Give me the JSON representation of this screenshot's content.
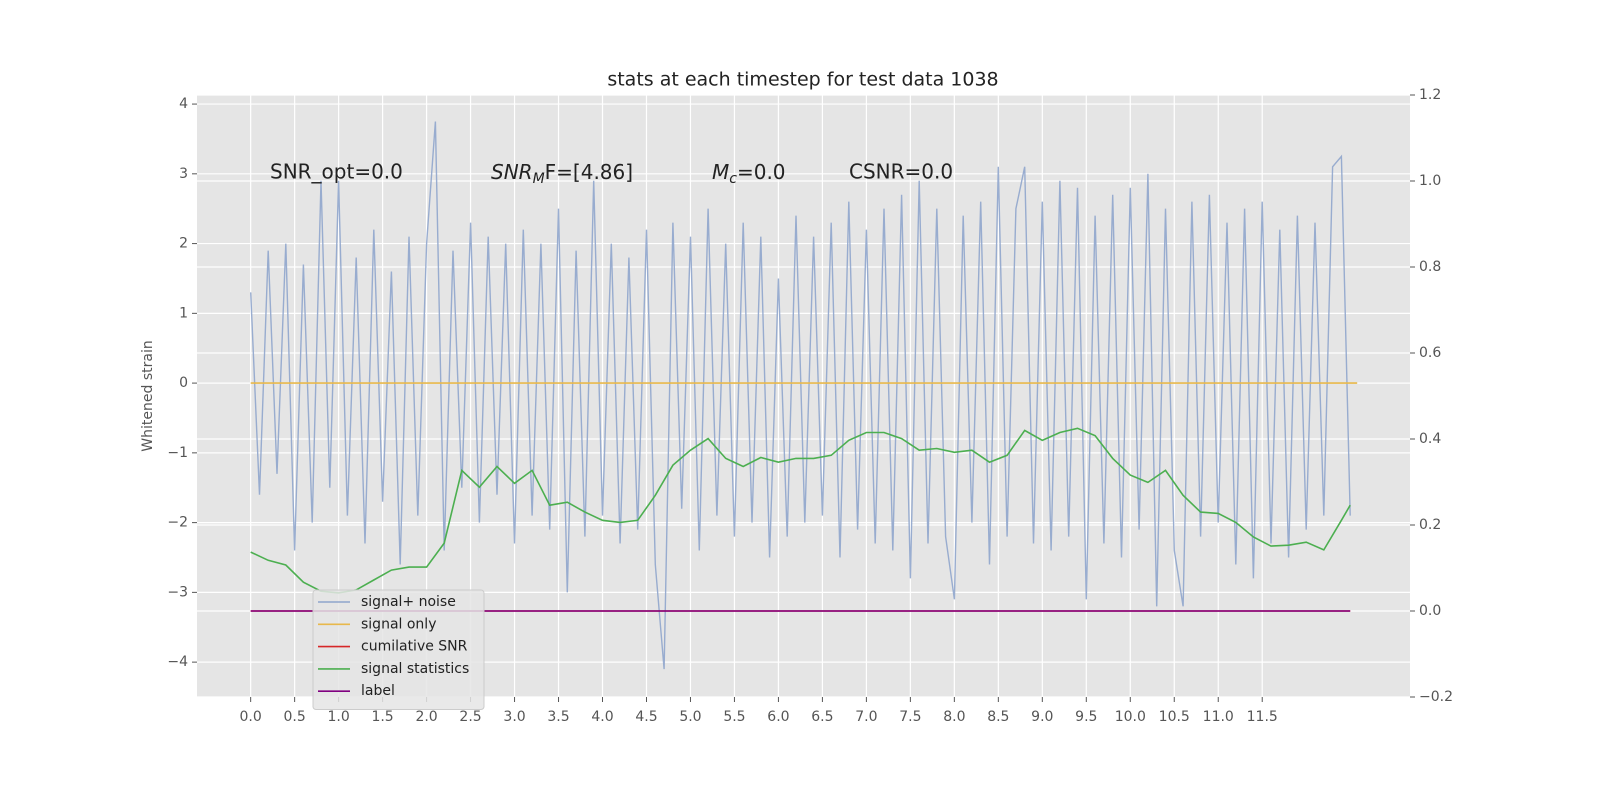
{
  "chart_data": {
    "type": "line",
    "title": "stats at each timestep for test data 1038",
    "ylabel": "Whitened strain",
    "annotations": [
      {
        "text": "SNR_opt=0.0"
      },
      {
        "base": "SNR",
        "sub": "M",
        "rest": "F=[4.86]"
      },
      {
        "base": "M",
        "sub": "c",
        "rest": "=0.0"
      },
      {
        "text": "CSNR=0.0"
      }
    ],
    "xlim": [
      -0.61,
      13.18
    ],
    "ylim": [
      -4.5,
      4.13
    ],
    "y2lim": [
      -0.2,
      1.2
    ],
    "xticks": [
      {
        "value": 0,
        "label": "0.0"
      },
      0.5,
      {
        "value": 1,
        "label": "1.0"
      },
      1.5,
      {
        "value": 2,
        "label": "2.0"
      },
      2.5,
      {
        "value": 3,
        "label": "3.0"
      },
      3.5,
      {
        "value": 4,
        "label": "4.0"
      },
      4.5,
      {
        "value": 5,
        "label": "5.0"
      },
      5.5,
      {
        "value": 6,
        "label": "6.0"
      },
      6.5,
      {
        "value": 7,
        "label": "7.0"
      },
      7.5,
      {
        "value": 8,
        "label": "8.0"
      },
      8.5,
      {
        "value": 9,
        "label": "9.0"
      },
      9.5,
      {
        "value": 10,
        "label": "10.0"
      },
      10.5,
      {
        "value": 11,
        "label": "11.0"
      },
      11.5
    ],
    "yticks": [
      {
        "value": -4,
        "label": "−4"
      },
      {
        "value": -3,
        "label": "−3"
      },
      {
        "value": -2,
        "label": "−2"
      },
      {
        "value": -1,
        "label": "−1"
      },
      0,
      1,
      2,
      3,
      4
    ],
    "y2ticks": [
      {
        "value": -0.2,
        "label": "−0.2"
      },
      {
        "value": 0,
        "label": "0.0"
      },
      0.2,
      0.4,
      0.6,
      0.8,
      {
        "value": 1,
        "label": "1.0"
      },
      1.2
    ],
    "grid": true,
    "legend": "lower left",
    "series": [
      {
        "name": "signal+ noise",
        "color": "#8fa5cc",
        "axis": "y",
        "x": [
          0,
          0.1,
          0.2,
          0.3,
          0.4,
          0.5,
          0.6,
          0.7,
          0.8,
          0.9,
          1,
          1.1,
          1.2,
          1.3,
          1.4,
          1.5,
          1.6,
          1.7,
          1.8,
          1.9,
          2,
          2.1,
          2.2,
          2.3,
          2.4,
          2.5,
          2.6,
          2.7,
          2.8,
          2.9,
          3,
          3.1,
          3.2,
          3.3,
          3.4,
          3.5,
          3.6,
          3.7,
          3.8,
          3.9,
          4,
          4.1,
          4.2,
          4.3,
          4.4,
          4.5,
          4.6,
          4.7,
          4.8,
          4.9,
          5,
          5.1,
          5.2,
          5.3,
          5.4,
          5.5,
          5.6,
          5.7,
          5.8,
          5.9,
          6,
          6.1,
          6.2,
          6.3,
          6.4,
          6.5,
          6.6,
          6.7,
          6.8,
          6.9,
          7,
          7.1,
          7.2,
          7.3,
          7.4,
          7.5,
          7.6,
          7.7,
          7.8,
          7.9,
          8,
          8.1,
          8.2,
          8.3,
          8.4,
          8.5,
          8.6,
          8.7,
          8.8,
          8.9,
          9,
          9.1,
          9.2,
          9.3,
          9.4,
          9.5,
          9.6,
          9.7,
          9.8,
          9.9,
          10,
          10.1,
          10.2,
          10.3,
          10.4,
          10.5,
          10.6,
          10.7,
          10.8,
          10.9,
          11,
          11.1,
          11.2,
          11.3,
          11.4,
          11.5,
          11.6,
          11.7,
          11.8,
          11.9,
          12,
          12.1,
          12.2,
          12.3,
          12.4,
          12.5
        ],
        "values": [
          1.3,
          -1.6,
          1.9,
          -1.3,
          2.0,
          -2.4,
          1.7,
          -2.0,
          2.9,
          -1.5,
          2.9,
          -1.9,
          1.8,
          -2.3,
          2.2,
          -1.7,
          1.6,
          -2.6,
          2.1,
          -1.9,
          2.0,
          3.75,
          -2.4,
          1.9,
          -1.5,
          2.3,
          -2.0,
          2.1,
          -1.6,
          2.0,
          -2.3,
          2.2,
          -1.9,
          2.0,
          -2.1,
          2.5,
          -3.0,
          1.9,
          -2.2,
          2.9,
          -1.9,
          2.0,
          -2.3,
          1.8,
          -2.1,
          2.2,
          -2.6,
          -4.1,
          2.3,
          -1.8,
          2.1,
          -2.4,
          2.5,
          -1.9,
          2.0,
          -2.2,
          2.3,
          -2.0,
          2.1,
          -2.5,
          1.5,
          -2.2,
          2.4,
          -2.0,
          2.1,
          -1.9,
          2.3,
          -2.5,
          2.6,
          -2.1,
          2.2,
          -2.3,
          2.5,
          -2.4,
          2.7,
          -2.8,
          2.9,
          -2.3,
          2.5,
          -2.2,
          -3.1,
          2.4,
          -2.0,
          2.6,
          -2.6,
          3.1,
          -2.2,
          2.5,
          3.1,
          -2.3,
          2.6,
          -2.4,
          2.9,
          -2.2,
          2.8,
          -3.1,
          2.4,
          -2.3,
          2.7,
          -2.5,
          2.8,
          -2.1,
          3.0,
          -3.2,
          2.5,
          -2.4,
          -3.2,
          2.6,
          -2.2,
          2.7,
          -2.0,
          2.3,
          -2.6,
          2.5,
          -2.8,
          2.6,
          -2.3,
          2.2,
          -2.5,
          2.4,
          -2.1,
          2.3,
          -1.9,
          3.1,
          3.25,
          -1.9
        ]
      },
      {
        "name": "signal only",
        "color": "#e8b84b",
        "axis": "y",
        "x": [
          0,
          12.58
        ],
        "values": [
          0,
          0
        ]
      },
      {
        "name": "cumilative SNR",
        "color": "#d62728",
        "axis": "y2",
        "x": [
          0,
          12.5
        ],
        "values": [
          0,
          0
        ]
      },
      {
        "name": "signal statistics",
        "color": "#4caf50",
        "axis": "y2",
        "x": [
          0,
          0.2,
          0.4,
          0.6,
          0.8,
          1,
          1.2,
          1.4,
          1.6,
          1.8,
          2,
          2.2,
          2.4,
          2.6,
          2.8,
          3,
          3.2,
          3.4,
          3.6,
          3.8,
          4,
          4.2,
          4.4,
          4.6,
          4.8,
          5,
          5.2,
          5.4,
          5.6,
          5.8,
          6,
          6.2,
          6.4,
          6.6,
          6.8,
          7,
          7.2,
          7.4,
          7.6,
          7.8,
          8,
          8.2,
          8.4,
          8.6,
          8.8,
          9,
          9.2,
          9.4,
          9.6,
          9.8,
          10,
          10.2,
          10.4,
          10.6,
          10.8,
          11,
          11.2,
          11.4,
          11.6,
          11.8,
          12,
          12.2,
          12.4,
          12.5
        ],
        "values": [
          0.137,
          0.118,
          0.107,
          0.067,
          0.046,
          0.042,
          0.049,
          0.072,
          0.095,
          0.102,
          0.102,
          0.158,
          0.327,
          0.288,
          0.336,
          0.297,
          0.327,
          0.246,
          0.253,
          0.23,
          0.211,
          0.206,
          0.211,
          0.269,
          0.339,
          0.374,
          0.401,
          0.355,
          0.336,
          0.357,
          0.346,
          0.355,
          0.355,
          0.362,
          0.397,
          0.415,
          0.415,
          0.401,
          0.374,
          0.378,
          0.369,
          0.374,
          0.346,
          0.362,
          0.42,
          0.397,
          0.415,
          0.425,
          0.408,
          0.355,
          0.316,
          0.299,
          0.327,
          0.269,
          0.23,
          0.227,
          0.206,
          0.172,
          0.151,
          0.153,
          0.16,
          0.142,
          0.211,
          0.246
        ]
      },
      {
        "name": "label",
        "color": "#800080",
        "axis": "y2",
        "x": [
          0,
          12.5
        ],
        "values": [
          0,
          0
        ]
      }
    ]
  }
}
